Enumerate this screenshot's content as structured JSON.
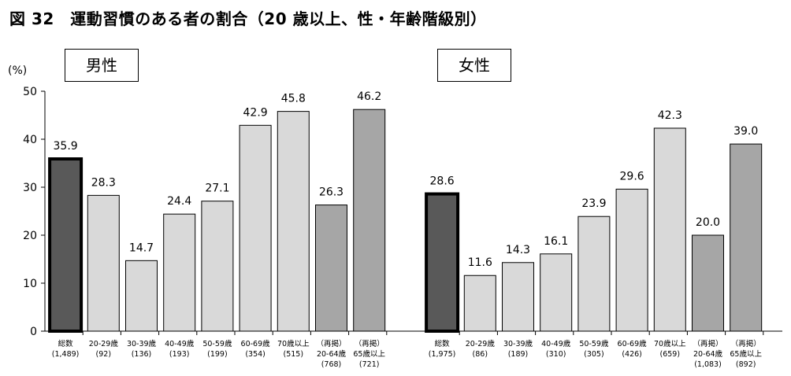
{
  "title": "図 32　運動習慣のある者の割合（20 歳以上、性・年齢階級別）",
  "y_unit": "(%)",
  "colors": {
    "total": "#595959",
    "age": "#d9d9d9",
    "regroup": "#a6a6a6",
    "border": "#000000"
  },
  "chart_data": {
    "type": "bar",
    "ylim": [
      0,
      50
    ],
    "yticks": [
      0,
      10,
      20,
      30,
      40,
      50
    ],
    "grid": false,
    "panels": [
      {
        "label": "男性",
        "categories": [
          {
            "name": "総数",
            "n": "(1,489)",
            "value": 35.9,
            "kind": "total"
          },
          {
            "name": "20-29歳",
            "n": "(92)",
            "value": 28.3,
            "kind": "age"
          },
          {
            "name": "30-39歳",
            "n": "(136)",
            "value": 14.7,
            "kind": "age"
          },
          {
            "name": "40-49歳",
            "n": "(193)",
            "value": 24.4,
            "kind": "age"
          },
          {
            "name": "50-59歳",
            "n": "(199)",
            "value": 27.1,
            "kind": "age"
          },
          {
            "name": "60-69歳",
            "n": "(354)",
            "value": 42.9,
            "kind": "age"
          },
          {
            "name": "70歳以上",
            "n": "(515)",
            "value": 45.8,
            "kind": "age"
          },
          {
            "name": "（再掲）\n20-64歳",
            "n": "(768)",
            "value": 26.3,
            "kind": "regroup"
          },
          {
            "name": "（再掲）\n65歳以上",
            "n": "(721)",
            "value": 46.2,
            "kind": "regroup"
          }
        ]
      },
      {
        "label": "女性",
        "categories": [
          {
            "name": "総数",
            "n": "(1,975)",
            "value": 28.6,
            "kind": "total"
          },
          {
            "name": "20-29歳",
            "n": "(86)",
            "value": 11.6,
            "kind": "age"
          },
          {
            "name": "30-39歳",
            "n": "(189)",
            "value": 14.3,
            "kind": "age"
          },
          {
            "name": "40-49歳",
            "n": "(310)",
            "value": 16.1,
            "kind": "age"
          },
          {
            "name": "50-59歳",
            "n": "(305)",
            "value": 23.9,
            "kind": "age"
          },
          {
            "name": "60-69歳",
            "n": "(426)",
            "value": 29.6,
            "kind": "age"
          },
          {
            "name": "70歳以上",
            "n": "(659)",
            "value": 42.3,
            "kind": "age"
          },
          {
            "name": "（再掲）\n20-64歳",
            "n": "(1,083)",
            "value": 20.0,
            "kind": "regroup"
          },
          {
            "name": "（再掲）\n65歳以上",
            "n": "(892)",
            "value": 39.0,
            "kind": "regroup"
          }
        ]
      }
    ]
  }
}
